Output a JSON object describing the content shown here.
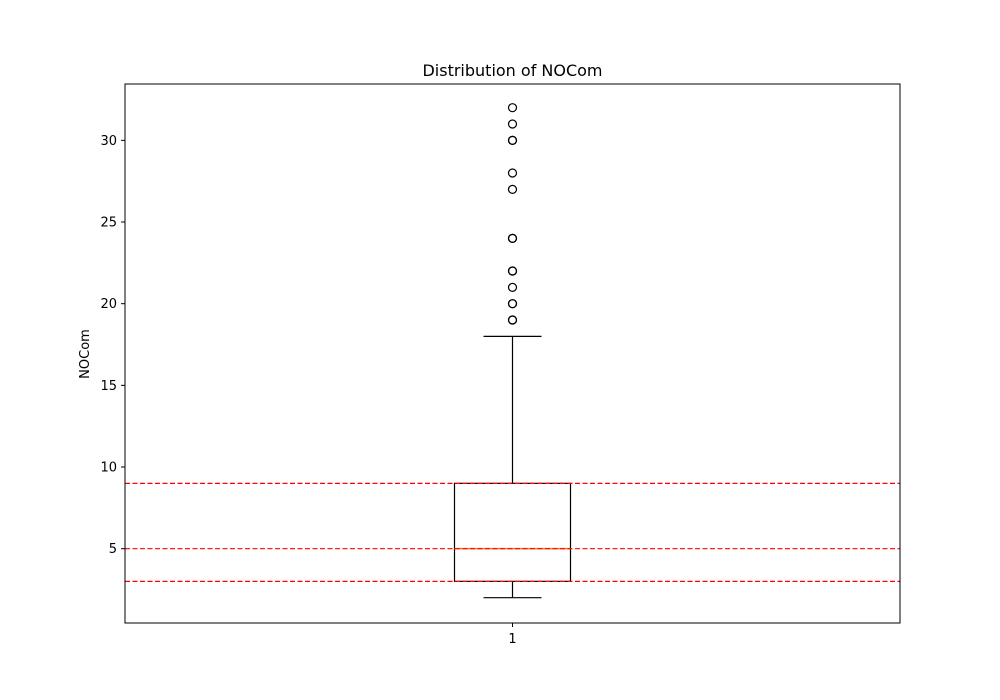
{
  "chart_data": {
    "type": "box",
    "title": "Distribution of NOCom",
    "xlabel": "",
    "ylabel": "NOCom",
    "categories": [
      "1"
    ],
    "ylim": [
      0.45,
      33.45
    ],
    "yticks": [
      5,
      10,
      15,
      20,
      25,
      30
    ],
    "grid": false,
    "box": {
      "whisker_low": 2,
      "q1": 3,
      "median": 5,
      "q3": 9,
      "whisker_high": 18,
      "outliers": [
        19,
        19,
        20,
        20,
        21,
        22,
        22,
        24,
        24,
        27,
        28,
        30,
        30,
        31,
        32
      ]
    },
    "reference_lines": [
      {
        "y": 9,
        "style": "dashed"
      },
      {
        "y": 5,
        "style": "dashed"
      },
      {
        "y": 3,
        "style": "dashed"
      }
    ],
    "colors": {
      "box": "#000000",
      "median": "#ff7f0e",
      "reference": "#ff0000",
      "outlier_edge": "#000000"
    }
  }
}
